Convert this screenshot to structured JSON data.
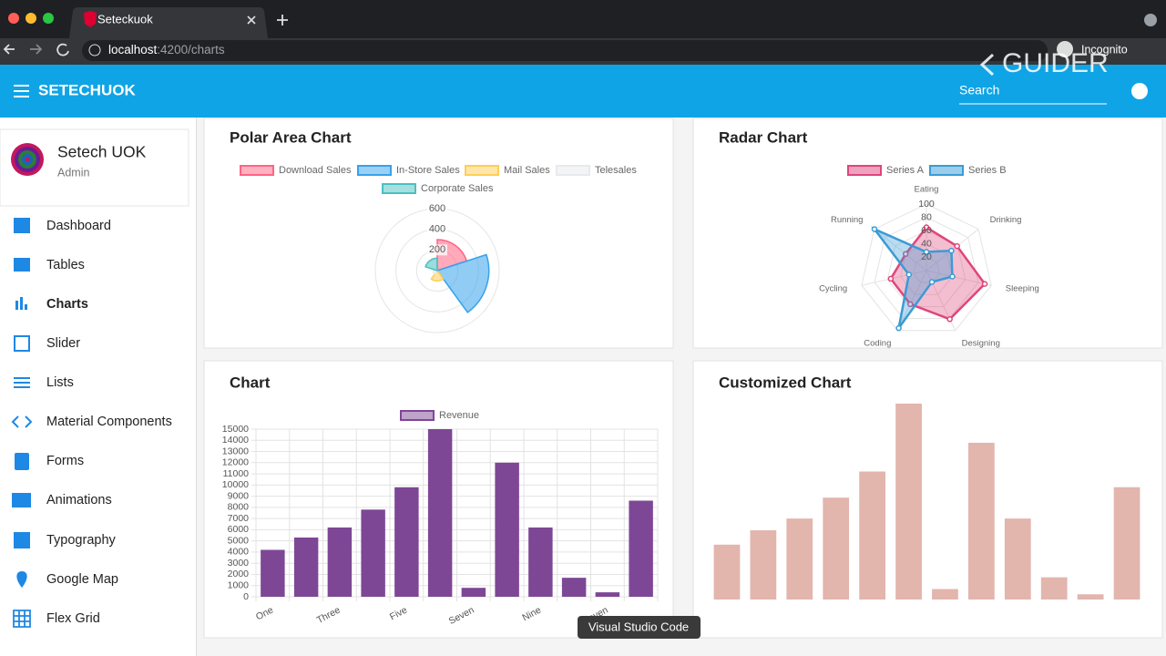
{
  "browser": {
    "tab_title": "Seteckuok",
    "url_host": "localhost",
    "url_path": ":4200/charts",
    "profile": "Incognito"
  },
  "watermark": "GUIDER",
  "toolbar": {
    "title": "SETECHUOK",
    "search": "Search"
  },
  "user": {
    "name": "Setech UOK",
    "role": "Admin"
  },
  "nav": [
    "Dashboard",
    "Tables",
    "Charts",
    "Slider",
    "Lists",
    "Material Components",
    "Forms",
    "Animations",
    "Typography",
    "Google Map",
    "Flex Grid"
  ],
  "tooltip": "Visual Studio Code",
  "charts": [
    {
      "type": "polarArea",
      "title": "Polar Area Chart",
      "categories": [
        "Download Sales",
        "In-Store Sales",
        "Mail Sales",
        "Telesales",
        "Corporate Sales"
      ],
      "values": [
        300,
        500,
        100,
        40,
        120
      ],
      "colors": [
        "#ff6384",
        "#36a2eb",
        "#ffce56",
        "#e7e9ed",
        "#4bc0c0"
      ],
      "rlim": [
        0,
        600
      ],
      "rticks": [
        200,
        400,
        600
      ]
    },
    {
      "type": "radar",
      "title": "Radar Chart",
      "categories": [
        "Eating",
        "Drinking",
        "Sleeping",
        "Designing",
        "Coding",
        "Cycling",
        "Running"
      ],
      "series": [
        {
          "name": "Series A",
          "color": "#e0457b",
          "values": [
            65,
            59,
            90,
            81,
            56,
            55,
            40
          ]
        },
        {
          "name": "Series B",
          "color": "#3a9bd5",
          "values": [
            28,
            48,
            40,
            19,
            96,
            27,
            100
          ]
        }
      ],
      "rlim": [
        0,
        100
      ],
      "rticks": [
        20,
        40,
        60,
        80,
        100
      ]
    },
    {
      "type": "bar",
      "title": "Chart",
      "categories": [
        "One",
        null,
        "Three",
        null,
        "Five",
        null,
        "Seven",
        null,
        "Nine",
        null,
        "Eleven",
        null
      ],
      "series": [
        {
          "name": "Revenue",
          "color": "#7e4795",
          "values": [
            4200,
            5300,
            6200,
            7800,
            9800,
            15000,
            800,
            12000,
            6200,
            1700,
            400,
            8600
          ]
        }
      ],
      "ylim": [
        0,
        15000
      ],
      "yticks": [
        0,
        1000,
        2000,
        3000,
        4000,
        5000,
        6000,
        7000,
        8000,
        9000,
        10000,
        11000,
        12000,
        13000,
        14000,
        15000
      ],
      "grid": true
    },
    {
      "type": "bar",
      "title": "Customized Chart",
      "values": [
        4200,
        5300,
        6200,
        7800,
        9800,
        15000,
        800,
        12000,
        6200,
        1700,
        400,
        8600
      ],
      "color": "#e2b5ad",
      "ylim": [
        0,
        15000
      ]
    }
  ]
}
